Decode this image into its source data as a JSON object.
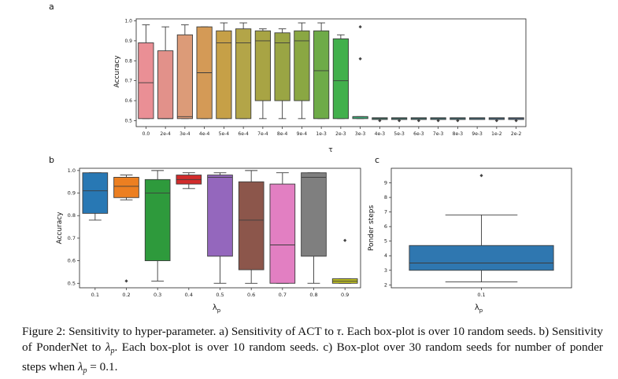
{
  "panels": {
    "a": {
      "letter": "a",
      "ylabel": "Accuracy",
      "xlabel": "τ"
    },
    "b": {
      "letter": "b",
      "ylabel": "Accuracy",
      "xlabel": "λ",
      "xlabel_sub": "p"
    },
    "c": {
      "letter": "c",
      "ylabel": "Ponder steps",
      "xlabel": "λ",
      "xlabel_sub": "p"
    }
  },
  "caption": {
    "label": "Figure 2:",
    "part1": " Sensitivity to hyper-parameter. a) Sensitivity of ACT to ",
    "tau": "τ",
    "part2": ". Each box-plot is over 10 random seeds. b) Sensitivity of PonderNet to ",
    "lambda": "λ",
    "sub": "p",
    "part3": ". Each box-plot is over 10 random seeds. c) Box-plot over 30 random seeds for number of ponder steps when ",
    "part4": " = 0.1."
  },
  "chart_data": [
    {
      "id": "a",
      "type": "box",
      "ylabel": "Accuracy",
      "xlabel": "τ",
      "ylim": [
        0.47,
        1.01
      ],
      "yticks": [
        0.5,
        0.6,
        0.7,
        0.8,
        0.9,
        1.0
      ],
      "categories": [
        "0.0",
        "2e-4",
        "3e-4",
        "4e-4",
        "5e-4",
        "6e-4",
        "7e-4",
        "8e-4",
        "9e-4",
        "1e-3",
        "2e-3",
        "3e-3",
        "4e-3",
        "5e-3",
        "6e-3",
        "7e-3",
        "8e-3",
        "9e-3",
        "1e-2",
        "2e-2"
      ],
      "colors": [
        "#ea8f95",
        "#e2918a",
        "#dc9b78",
        "#d49a56",
        "#c6a047",
        "#b3a548",
        "#a8a444",
        "#9aa544",
        "#8aa743",
        "#6eab48",
        "#42b04c",
        "#3fae7a",
        "#3aa98c",
        "#37a697",
        "#36a39e",
        "#37a2a8",
        "#39a0b3",
        "#3f9dc0",
        "#4a98ca",
        "#5893d1"
      ],
      "boxes": [
        {
          "min": 0.51,
          "q1": 0.51,
          "median": 0.69,
          "q3": 0.89,
          "max": 0.98,
          "outliers": []
        },
        {
          "min": 0.51,
          "q1": 0.51,
          "median": 0.51,
          "q3": 0.85,
          "max": 0.97,
          "outliers": []
        },
        {
          "min": 0.51,
          "q1": 0.51,
          "median": 0.52,
          "q3": 0.93,
          "max": 0.98,
          "outliers": []
        },
        {
          "min": 0.51,
          "q1": 0.51,
          "median": 0.74,
          "q3": 0.97,
          "max": 0.97,
          "outliers": []
        },
        {
          "min": 0.51,
          "q1": 0.51,
          "median": 0.89,
          "q3": 0.95,
          "max": 0.99,
          "outliers": []
        },
        {
          "min": 0.51,
          "q1": 0.51,
          "median": 0.89,
          "q3": 0.96,
          "max": 0.99,
          "outliers": []
        },
        {
          "min": 0.51,
          "q1": 0.6,
          "median": 0.9,
          "q3": 0.95,
          "max": 0.96,
          "outliers": []
        },
        {
          "min": 0.51,
          "q1": 0.6,
          "median": 0.89,
          "q3": 0.94,
          "max": 0.96,
          "outliers": []
        },
        {
          "min": 0.51,
          "q1": 0.6,
          "median": 0.9,
          "q3": 0.95,
          "max": 0.99,
          "outliers": []
        },
        {
          "min": 0.51,
          "q1": 0.51,
          "median": 0.75,
          "q3": 0.95,
          "max": 0.99,
          "outliers": []
        },
        {
          "min": 0.51,
          "q1": 0.51,
          "median": 0.7,
          "q3": 0.91,
          "max": 0.93,
          "outliers": []
        },
        {
          "min": 0.51,
          "q1": 0.51,
          "median": 0.52,
          "q3": 0.52,
          "max": 0.52,
          "outliers": [
            0.97,
            0.81
          ]
        },
        {
          "min": 0.51,
          "q1": 0.51,
          "median": 0.51,
          "q3": 0.51,
          "max": 0.51,
          "outliers": [
            0.5
          ]
        },
        {
          "min": 0.51,
          "q1": 0.51,
          "median": 0.51,
          "q3": 0.51,
          "max": 0.51,
          "outliers": [
            0.5
          ]
        },
        {
          "min": 0.51,
          "q1": 0.51,
          "median": 0.51,
          "q3": 0.51,
          "max": 0.51,
          "outliers": [
            0.5
          ]
        },
        {
          "min": 0.51,
          "q1": 0.51,
          "median": 0.51,
          "q3": 0.51,
          "max": 0.51,
          "outliers": [
            0.5
          ]
        },
        {
          "min": 0.51,
          "q1": 0.51,
          "median": 0.51,
          "q3": 0.51,
          "max": 0.51,
          "outliers": [
            0.5
          ]
        },
        {
          "min": 0.51,
          "q1": 0.51,
          "median": 0.51,
          "q3": 0.51,
          "max": 0.51,
          "outliers": []
        },
        {
          "min": 0.51,
          "q1": 0.51,
          "median": 0.51,
          "q3": 0.51,
          "max": 0.51,
          "outliers": [
            0.5
          ]
        },
        {
          "min": 0.51,
          "q1": 0.51,
          "median": 0.51,
          "q3": 0.51,
          "max": 0.51,
          "outliers": [
            0.5
          ]
        }
      ]
    },
    {
      "id": "b",
      "type": "box",
      "ylabel": "Accuracy",
      "xlabel": "λp",
      "ylim": [
        0.48,
        1.01
      ],
      "yticks": [
        0.5,
        0.6,
        0.7,
        0.8,
        0.9,
        1.0
      ],
      "categories": [
        "0.1",
        "0.2",
        "0.3",
        "0.4",
        "0.5",
        "0.6",
        "0.7",
        "0.8",
        "0.9"
      ],
      "colors": [
        "#2878b4",
        "#ec7f21",
        "#2e9a3c",
        "#d22b2b",
        "#9467bd",
        "#8c564b",
        "#e27fc2",
        "#7f7f7f",
        "#bcbd22"
      ],
      "boxes": [
        {
          "min": 0.78,
          "q1": 0.81,
          "median": 0.91,
          "q3": 0.99,
          "max": 0.99,
          "outliers": []
        },
        {
          "min": 0.87,
          "q1": 0.88,
          "median": 0.93,
          "q3": 0.97,
          "max": 0.98,
          "outliers": [
            0.51
          ]
        },
        {
          "min": 0.51,
          "q1": 0.6,
          "median": 0.9,
          "q3": 0.96,
          "max": 1.0,
          "outliers": []
        },
        {
          "min": 0.92,
          "q1": 0.94,
          "median": 0.96,
          "q3": 0.98,
          "max": 0.99,
          "outliers": []
        },
        {
          "min": 0.5,
          "q1": 0.62,
          "median": 0.97,
          "q3": 0.98,
          "max": 0.99,
          "outliers": []
        },
        {
          "min": 0.5,
          "q1": 0.56,
          "median": 0.78,
          "q3": 0.95,
          "max": 1.0,
          "outliers": []
        },
        {
          "min": 0.5,
          "q1": 0.5,
          "median": 0.67,
          "q3": 0.94,
          "max": 0.99,
          "outliers": []
        },
        {
          "min": 0.5,
          "q1": 0.62,
          "median": 0.97,
          "q3": 0.99,
          "max": 0.99,
          "outliers": []
        },
        {
          "min": 0.5,
          "q1": 0.5,
          "median": 0.51,
          "q3": 0.52,
          "max": 0.52,
          "outliers": [
            0.69
          ]
        }
      ]
    },
    {
      "id": "c",
      "type": "box",
      "ylabel": "Ponder steps",
      "xlabel": "λp",
      "ylim": [
        1.8,
        10.0
      ],
      "yticks": [
        2,
        3,
        4,
        5,
        6,
        7,
        8,
        9
      ],
      "categories": [
        "0.1"
      ],
      "colors": [
        "#2f77b0"
      ],
      "boxes": [
        {
          "min": 2.2,
          "q1": 3.0,
          "median": 3.5,
          "q3": 4.7,
          "max": 6.8,
          "outliers": [
            9.5
          ]
        }
      ]
    }
  ]
}
